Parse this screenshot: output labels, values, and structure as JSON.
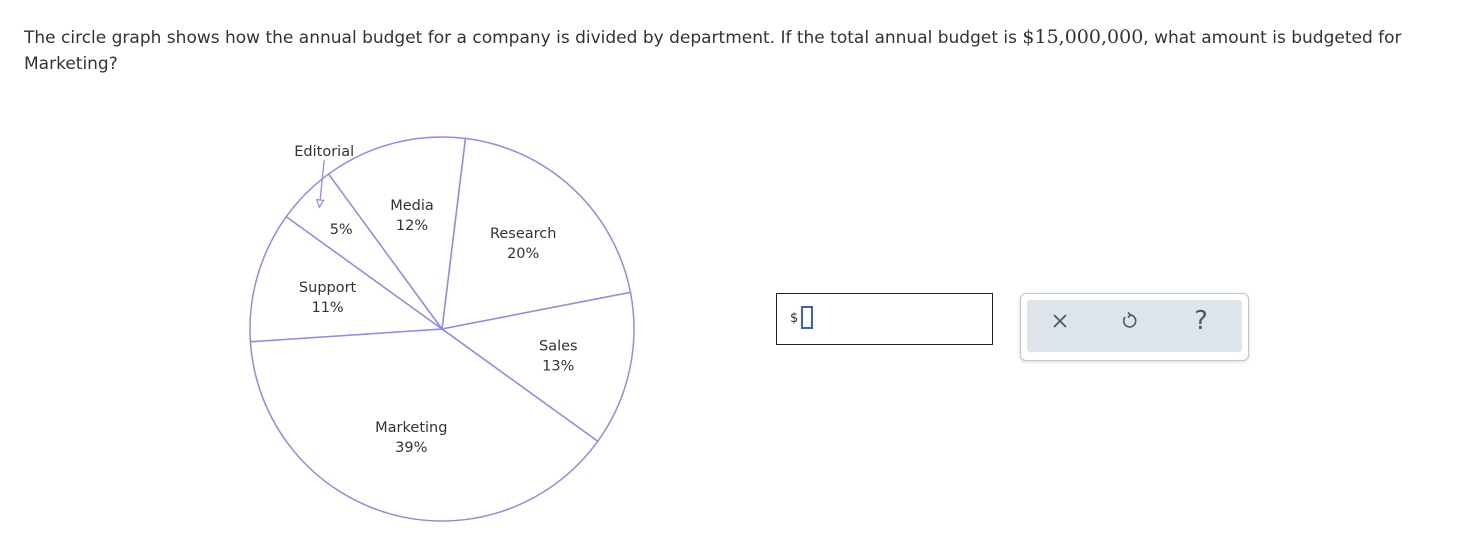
{
  "question": {
    "text_before": "The circle graph shows how the annual budget for a company is divided by department. If the total annual budget is ",
    "amount": "$15,000,000",
    "text_after": ", what amount is budgeted for Marketing?"
  },
  "chart_data": {
    "type": "pie",
    "slices": [
      {
        "label": "Research",
        "value": 20,
        "value_label": "20%"
      },
      {
        "label": "Sales",
        "value": 13,
        "value_label": "13%"
      },
      {
        "label": "Marketing",
        "value": 39,
        "value_label": "39%"
      },
      {
        "label": "Support",
        "value": 11,
        "value_label": "11%"
      },
      {
        "label": "Editorial",
        "value": 5,
        "value_label": "5%"
      },
      {
        "label": "Media",
        "value": 12,
        "value_label": "12%"
      }
    ],
    "colors": {
      "stroke": "#8a8cf0",
      "fill": "#ffffff"
    }
  },
  "answer": {
    "prefix": "$",
    "value": ""
  },
  "actions": {
    "clear": "Clear",
    "undo": "Undo",
    "help": "?"
  },
  "colors": {
    "panel_bg": "#dde5ea",
    "icon": "#4a5a66",
    "cursor": "#3b5bdb"
  }
}
